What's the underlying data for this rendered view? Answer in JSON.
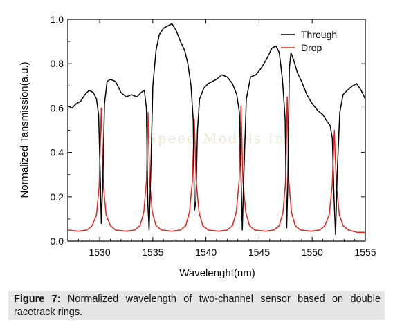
{
  "caption": {
    "label": "Figure 7:",
    "text": " Normalized wavelength of two-channel sensor based on double racetrack rings."
  },
  "watermark": "Speed Models In",
  "chart_data": {
    "type": "line",
    "xlabel": "Wavelenght(nm)",
    "ylabel": "Normalized Tansmission(a.u.)",
    "xlim": [
      1527,
      1555
    ],
    "ylim": [
      0.0,
      1.0
    ],
    "xticks": [
      1530,
      1535,
      1540,
      1545,
      1550,
      1555
    ],
    "yticks": [
      0.0,
      0.2,
      0.4,
      0.6,
      0.8,
      1.0
    ],
    "legend_position": "top-right",
    "colors": {
      "through": "#000000",
      "drop": "#e8201a"
    },
    "series": [
      {
        "name": "Through",
        "x": [
          1527.0,
          1527.4,
          1527.8,
          1528.2,
          1528.6,
          1529.0,
          1529.4,
          1529.7,
          1529.9,
          1530.05,
          1530.15,
          1530.3,
          1530.45,
          1530.7,
          1531.0,
          1531.5,
          1532.0,
          1532.5,
          1533.0,
          1533.5,
          1533.9,
          1534.2,
          1534.4,
          1534.52,
          1534.65,
          1534.8,
          1535.0,
          1535.3,
          1535.6,
          1536.0,
          1536.4,
          1536.8,
          1537.2,
          1537.6,
          1538.0,
          1538.3,
          1538.6,
          1538.8,
          1538.92,
          1539.05,
          1539.2,
          1539.4,
          1539.8,
          1540.2,
          1540.6,
          1541.0,
          1541.5,
          1542.0,
          1542.5,
          1542.9,
          1543.15,
          1543.3,
          1543.42,
          1543.55,
          1543.8,
          1544.2,
          1544.7,
          1545.2,
          1545.7,
          1546.2,
          1546.6,
          1546.9,
          1547.2,
          1547.45,
          1547.6,
          1547.7,
          1547.85,
          1548.0,
          1548.3,
          1548.6,
          1549.0,
          1549.5,
          1550.0,
          1550.5,
          1551.0,
          1551.4,
          1551.7,
          1551.9,
          1552.05,
          1552.2,
          1552.35,
          1552.6,
          1552.9,
          1553.3,
          1553.8,
          1554.2,
          1554.6,
          1555.0
        ],
        "y": [
          0.61,
          0.6,
          0.62,
          0.63,
          0.66,
          0.68,
          0.67,
          0.64,
          0.57,
          0.3,
          0.08,
          0.28,
          0.62,
          0.72,
          0.73,
          0.72,
          0.67,
          0.65,
          0.66,
          0.65,
          0.67,
          0.68,
          0.6,
          0.18,
          0.05,
          0.3,
          0.7,
          0.86,
          0.93,
          0.96,
          0.97,
          0.98,
          0.95,
          0.9,
          0.86,
          0.8,
          0.7,
          0.55,
          0.14,
          0.18,
          0.5,
          0.64,
          0.69,
          0.71,
          0.72,
          0.73,
          0.75,
          0.74,
          0.71,
          0.66,
          0.58,
          0.3,
          0.05,
          0.28,
          0.64,
          0.74,
          0.75,
          0.78,
          0.82,
          0.87,
          0.88,
          0.85,
          0.73,
          0.55,
          0.06,
          0.25,
          0.78,
          0.85,
          0.81,
          0.76,
          0.72,
          0.66,
          0.62,
          0.59,
          0.57,
          0.54,
          0.52,
          0.46,
          0.2,
          0.03,
          0.3,
          0.58,
          0.66,
          0.68,
          0.7,
          0.71,
          0.68,
          0.64
        ]
      },
      {
        "name": "Drop",
        "x": [
          1527.0,
          1528.0,
          1528.8,
          1529.3,
          1529.7,
          1529.95,
          1530.15,
          1530.35,
          1530.6,
          1531.0,
          1531.5,
          1532.5,
          1533.3,
          1533.8,
          1534.15,
          1534.4,
          1534.55,
          1534.7,
          1534.95,
          1535.3,
          1535.8,
          1536.8,
          1537.6,
          1538.1,
          1538.45,
          1538.72,
          1538.9,
          1539.08,
          1539.35,
          1539.7,
          1540.2,
          1541.2,
          1542.0,
          1542.5,
          1542.85,
          1543.12,
          1543.3,
          1543.48,
          1543.75,
          1544.1,
          1544.6,
          1545.6,
          1546.4,
          1546.9,
          1547.25,
          1547.5,
          1547.65,
          1547.8,
          1548.05,
          1548.4,
          1548.9,
          1549.9,
          1550.7,
          1551.2,
          1551.6,
          1551.88,
          1552.08,
          1552.28,
          1552.55,
          1552.9,
          1553.4,
          1554.2,
          1555.0
        ],
        "y": [
          0.05,
          0.045,
          0.05,
          0.07,
          0.12,
          0.25,
          0.6,
          0.25,
          0.12,
          0.07,
          0.05,
          0.045,
          0.05,
          0.07,
          0.13,
          0.27,
          0.58,
          0.27,
          0.13,
          0.07,
          0.05,
          0.045,
          0.05,
          0.07,
          0.13,
          0.27,
          0.55,
          0.27,
          0.13,
          0.07,
          0.05,
          0.045,
          0.05,
          0.07,
          0.13,
          0.27,
          0.61,
          0.27,
          0.13,
          0.07,
          0.05,
          0.045,
          0.05,
          0.07,
          0.13,
          0.27,
          0.65,
          0.27,
          0.13,
          0.07,
          0.05,
          0.045,
          0.05,
          0.07,
          0.12,
          0.25,
          0.5,
          0.25,
          0.12,
          0.07,
          0.05,
          0.04,
          0.04
        ]
      }
    ]
  }
}
